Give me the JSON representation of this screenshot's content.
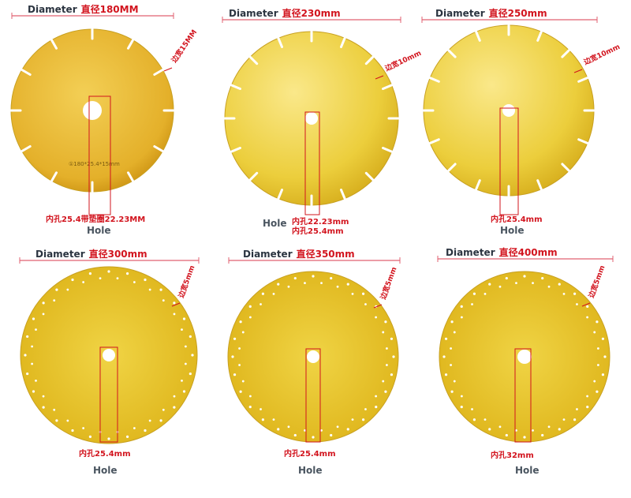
{
  "blades": [
    {
      "diameter_label": "Diameter",
      "diameter": "直径180MM",
      "rim": "边宽15MM",
      "hole": [
        "内孔25.4带垫圈22.23MM"
      ],
      "hole_label": "Hole",
      "stamp": "①180*25.4*15mm"
    },
    {
      "diameter_label": "Diameter",
      "diameter": "直径230mm",
      "rim": "边宽10mm",
      "hole": [
        "内孔22.23mm",
        "内孔25.4mm"
      ],
      "hole_label": "Hole"
    },
    {
      "diameter_label": "Diameter",
      "diameter": "直径250mm",
      "rim": "边宽10mm",
      "hole": [
        "内孔25.4mm"
      ],
      "hole_label": "Hole"
    },
    {
      "diameter_label": "Diameter",
      "diameter": "直径300mm",
      "rim": "边宽5mm",
      "hole": [
        "内孔25.4mm"
      ],
      "hole_label": "Hole"
    },
    {
      "diameter_label": "Diameter",
      "diameter": "直径350mm",
      "rim": "边宽5mm",
      "hole": [
        "内孔25.4mm"
      ],
      "hole_label": "Hole"
    },
    {
      "diameter_label": "Diameter",
      "diameter": "直径400mm",
      "rim": "边宽5mm",
      "hole": [
        "内孔32mm"
      ],
      "hole_label": "Hole"
    }
  ]
}
